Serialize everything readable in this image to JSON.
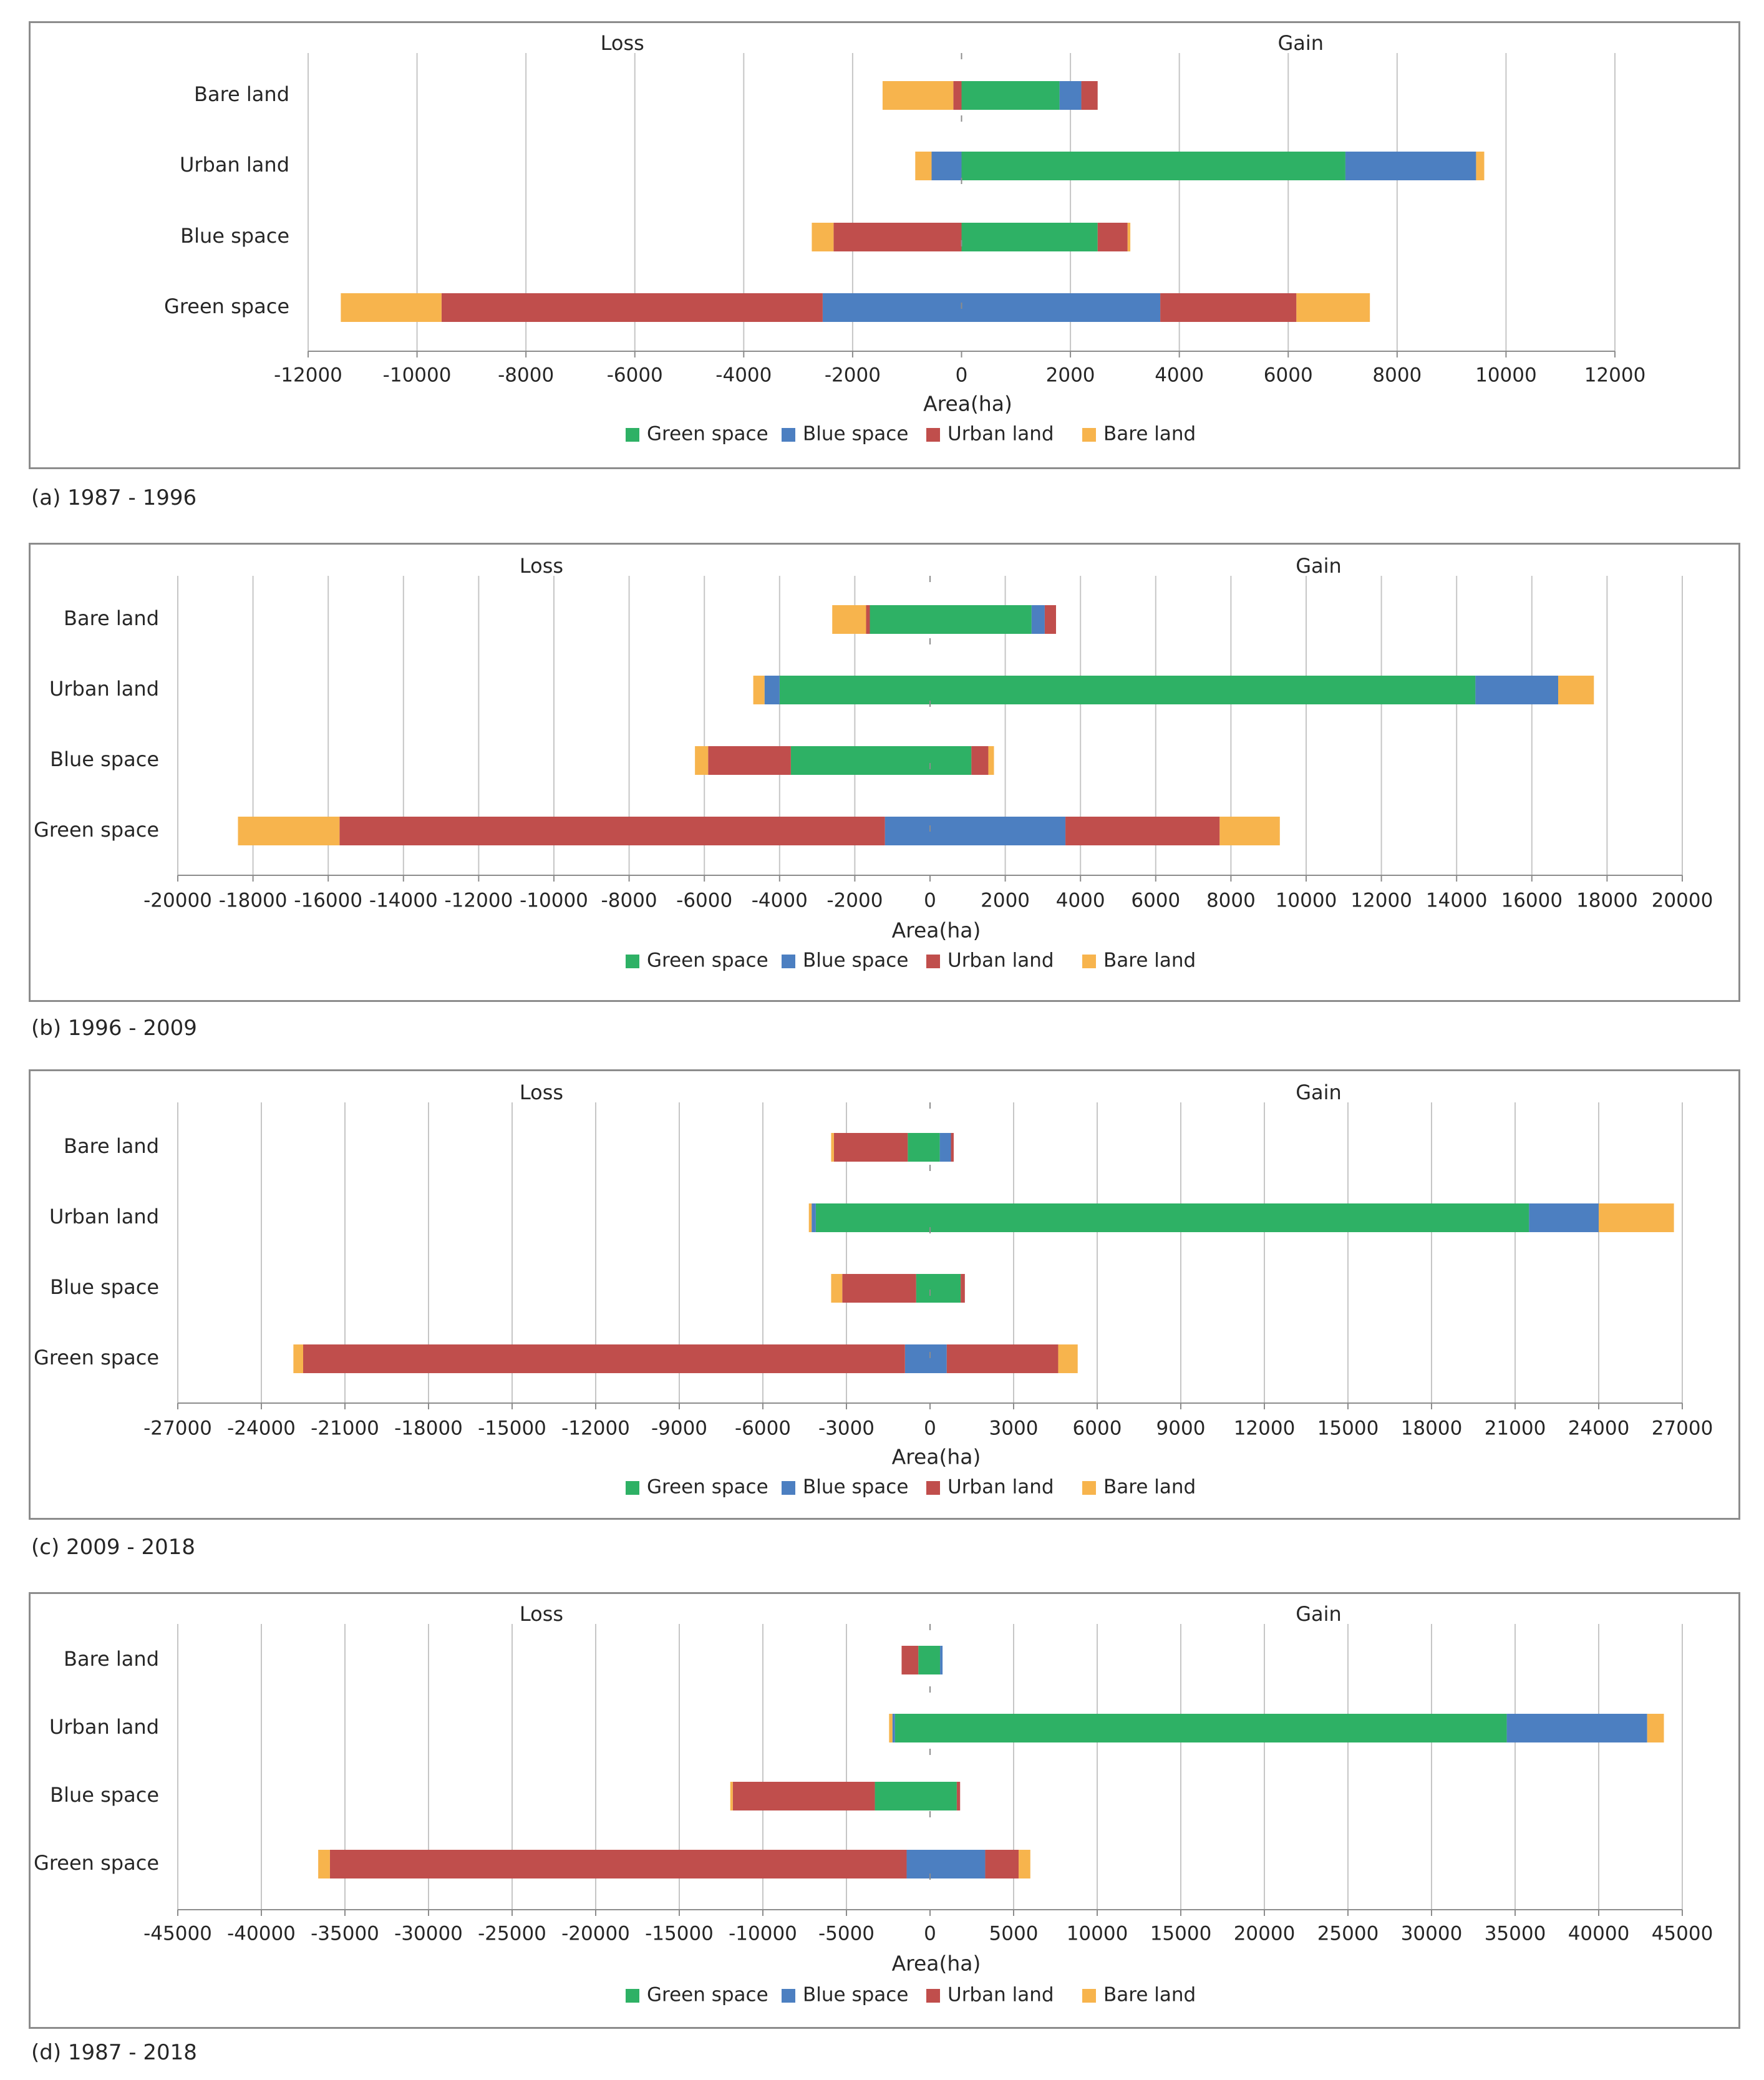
{
  "colors": {
    "green_space": "#2eb165",
    "blue_space": "#4c7fc1",
    "urban_land": "#c04e4c",
    "bare_land": "#f7b44d",
    "grid": "#c6c6c6",
    "axis": "#8c8c8c",
    "text": "#262626"
  },
  "chart_data": [
    {
      "type": "bar",
      "orientation": "horizontal-stacked-diverging",
      "caption": "(a) 1987 - 1996",
      "loss_label": "Loss",
      "gain_label": "Gain",
      "xlabel": "Area(ha)",
      "xlim": [
        -12000,
        12000
      ],
      "xticks": [
        -12000,
        -10000,
        -8000,
        -6000,
        -4000,
        -2000,
        0,
        2000,
        4000,
        6000,
        8000,
        10000,
        12000
      ],
      "grid": true,
      "legend_position": "bottom",
      "categories": [
        "Bare land",
        "Urban land",
        "Blue space",
        "Green space"
      ],
      "series": [
        {
          "name": "Green space",
          "loss": [
            0,
            0,
            0,
            0
          ],
          "gain": [
            1800,
            7050,
            2500,
            0
          ]
        },
        {
          "name": "Blue space",
          "loss": [
            0,
            -550,
            0,
            -2550
          ],
          "gain": [
            400,
            2400,
            0,
            3650
          ]
        },
        {
          "name": "Urban land",
          "loss": [
            -150,
            0,
            -2350,
            -7000
          ],
          "gain": [
            300,
            0,
            550,
            2500
          ]
        },
        {
          "name": "Bare land",
          "loss": [
            -1300,
            -300,
            -400,
            -1850
          ],
          "gain": [
            0,
            150,
            50,
            1350
          ]
        }
      ],
      "legend": [
        "Green space",
        "Blue space",
        "Urban land",
        "Bare land"
      ]
    },
    {
      "type": "bar",
      "orientation": "horizontal-stacked-diverging",
      "caption": "(b) 1996 - 2009",
      "loss_label": "Loss",
      "gain_label": "Gain",
      "xlabel": "Area(ha)",
      "xlim": [
        -20000,
        20000
      ],
      "xticks": [
        -20000,
        -18000,
        -16000,
        -14000,
        -12000,
        -10000,
        -8000,
        -6000,
        -4000,
        -2000,
        0,
        2000,
        4000,
        6000,
        8000,
        10000,
        12000,
        14000,
        16000,
        18000,
        20000
      ],
      "grid": true,
      "legend_position": "bottom",
      "categories": [
        "Bare land",
        "Urban land",
        "Blue space",
        "Green space"
      ],
      "series": [
        {
          "name": "Green space",
          "loss": [
            -1600,
            -4000,
            -3700,
            0
          ],
          "gain": [
            2700,
            14500,
            1100,
            0
          ]
        },
        {
          "name": "Blue space",
          "loss": [
            0,
            -400,
            0,
            -1200
          ],
          "gain": [
            350,
            2200,
            0,
            3600
          ]
        },
        {
          "name": "Urban land",
          "loss": [
            -100,
            0,
            -2200,
            -14500
          ],
          "gain": [
            300,
            0,
            450,
            4100
          ]
        },
        {
          "name": "Bare land",
          "loss": [
            -900,
            -300,
            -350,
            -2700
          ],
          "gain": [
            0,
            950,
            150,
            1600
          ]
        }
      ],
      "legend": [
        "Green space",
        "Blue space",
        "Urban land",
        "Bare land"
      ]
    },
    {
      "type": "bar",
      "orientation": "horizontal-stacked-diverging",
      "caption": "(c) 2009 - 2018",
      "loss_label": "Loss",
      "gain_label": "Gain",
      "xlabel": "Area(ha)",
      "xlim": [
        -27000,
        27000
      ],
      "xticks": [
        -27000,
        -24000,
        -21000,
        -18000,
        -15000,
        -12000,
        -9000,
        -6000,
        -3000,
        0,
        3000,
        6000,
        9000,
        12000,
        15000,
        18000,
        21000,
        24000,
        27000
      ],
      "grid": true,
      "legend_position": "bottom",
      "categories": [
        "Bare land",
        "Urban land",
        "Blue space",
        "Green space"
      ],
      "series": [
        {
          "name": "Green space",
          "loss": [
            -800,
            -4100,
            -500,
            0
          ],
          "gain": [
            350,
            21500,
            1100,
            0
          ]
        },
        {
          "name": "Blue space",
          "loss": [
            0,
            -150,
            0,
            -900
          ],
          "gain": [
            400,
            2500,
            0,
            600
          ]
        },
        {
          "name": "Urban land",
          "loss": [
            -2650,
            0,
            -2650,
            -21600
          ],
          "gain": [
            100,
            0,
            150,
            4000
          ]
        },
        {
          "name": "Bare land",
          "loss": [
            -100,
            -100,
            -400,
            -350
          ],
          "gain": [
            0,
            2700,
            0,
            700
          ]
        }
      ],
      "legend": [
        "Green space",
        "Blue space",
        "Urban land",
        "Bare land"
      ]
    },
    {
      "type": "bar",
      "orientation": "horizontal-stacked-diverging",
      "caption": "(d) 1987 - 2018",
      "loss_label": "Loss",
      "gain_label": "Gain",
      "xlabel": "Area(ha)",
      "xlim": [
        -45000,
        45000
      ],
      "xticks": [
        -45000,
        -40000,
        -35000,
        -30000,
        -25000,
        -20000,
        -15000,
        -10000,
        -5000,
        0,
        5000,
        10000,
        15000,
        20000,
        25000,
        30000,
        35000,
        40000,
        45000
      ],
      "grid": true,
      "legend_position": "bottom",
      "categories": [
        "Bare land",
        "Urban land",
        "Blue space",
        "Green space"
      ],
      "series": [
        {
          "name": "Green space",
          "loss": [
            -700,
            -2100,
            -3300,
            0
          ],
          "gain": [
            600,
            34500,
            1600,
            0
          ]
        },
        {
          "name": "Blue space",
          "loss": [
            0,
            -150,
            0,
            -1400
          ],
          "gain": [
            150,
            8400,
            0,
            3300
          ]
        },
        {
          "name": "Urban land",
          "loss": [
            -1000,
            0,
            -8500,
            -34500
          ],
          "gain": [
            0,
            0,
            200,
            2000
          ]
        },
        {
          "name": "Bare land",
          "loss": [
            0,
            -200,
            -150,
            -700
          ],
          "gain": [
            0,
            1000,
            0,
            700
          ]
        }
      ],
      "legend": [
        "Green space",
        "Blue space",
        "Urban land",
        "Bare land"
      ]
    }
  ]
}
